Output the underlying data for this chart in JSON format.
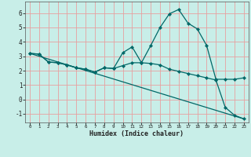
{
  "title": "",
  "xlabel": "Humidex (Indice chaleur)",
  "background_color": "#c8eee8",
  "grid_color": "#e8a0a0",
  "line_color": "#006868",
  "axis_color": "#444444",
  "xlabel_bg": "#a8d8d0",
  "xlim": [
    -0.5,
    23.5
  ],
  "ylim": [
    -1.6,
    6.8
  ],
  "yticks": [
    -1,
    0,
    1,
    2,
    3,
    4,
    5,
    6
  ],
  "xticks": [
    0,
    1,
    2,
    3,
    4,
    5,
    6,
    7,
    8,
    9,
    10,
    11,
    12,
    13,
    14,
    15,
    16,
    17,
    18,
    19,
    20,
    21,
    22,
    23
  ],
  "line1_x": [
    0,
    1,
    2,
    3,
    4,
    5,
    6,
    7,
    8,
    9,
    10,
    11,
    12,
    13,
    14,
    15,
    16,
    17,
    18,
    19,
    20,
    21,
    22,
    23
  ],
  "line1_y": [
    3.2,
    3.15,
    2.6,
    2.55,
    2.4,
    2.2,
    2.1,
    1.9,
    2.2,
    2.15,
    3.25,
    3.65,
    2.55,
    3.75,
    5.0,
    5.95,
    6.25,
    5.3,
    4.9,
    3.75,
    1.4,
    1.4,
    1.4,
    1.5
  ],
  "line2_x": [
    0,
    1,
    2,
    3,
    4,
    5,
    6,
    7,
    8,
    9,
    10,
    11,
    12,
    13,
    14,
    15,
    16,
    17,
    18,
    19,
    20,
    21,
    22,
    23
  ],
  "line2_y": [
    3.2,
    3.15,
    2.6,
    2.55,
    2.4,
    2.2,
    2.1,
    1.9,
    2.2,
    2.15,
    2.35,
    2.55,
    2.55,
    2.5,
    2.4,
    2.1,
    1.95,
    1.8,
    1.65,
    1.5,
    1.35,
    -0.55,
    -1.1,
    -1.35
  ],
  "line3_x": [
    0,
    23
  ],
  "line3_y": [
    3.2,
    -1.35
  ]
}
